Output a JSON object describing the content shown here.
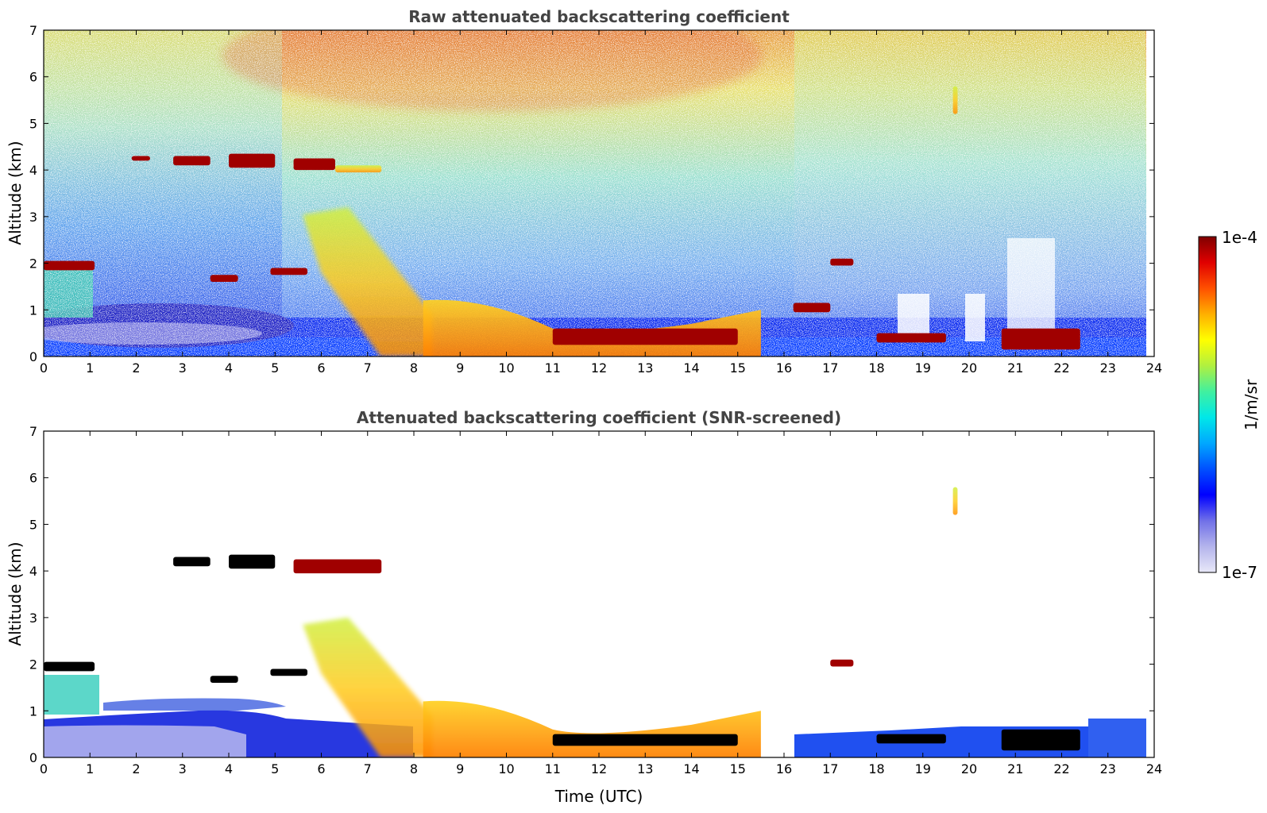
{
  "chart_data": [
    {
      "type": "heatmap",
      "title": "Raw attenuated backscattering coefficient",
      "xlabel": "",
      "ylabel": "Altitude (km)",
      "xlim": [
        0,
        24
      ],
      "ylim": [
        0,
        7
      ],
      "xticks": [
        "0",
        "1",
        "2",
        "3",
        "4",
        "5",
        "6",
        "7",
        "8",
        "9",
        "10",
        "11",
        "12",
        "13",
        "14",
        "15",
        "16",
        "17",
        "18",
        "19",
        "20",
        "21",
        "22",
        "23",
        "24"
      ],
      "yticks": [
        "0",
        "1",
        "2",
        "3",
        "4",
        "5",
        "6",
        "7"
      ],
      "scale": "log",
      "data_end_hour": 23.8,
      "features": [
        {
          "kind": "cloud_layer",
          "x": [
            0.0,
            1.1
          ],
          "y": [
            1.85,
            2.05
          ],
          "level": "high"
        },
        {
          "kind": "cloud_layer",
          "x": [
            1.9,
            2.3
          ],
          "y": [
            4.2,
            4.3
          ],
          "level": "high"
        },
        {
          "kind": "cloud_layer",
          "x": [
            2.8,
            3.6
          ],
          "y": [
            4.1,
            4.3
          ],
          "level": "high"
        },
        {
          "kind": "cloud_layer",
          "x": [
            4.0,
            5.0
          ],
          "y": [
            4.05,
            4.35
          ],
          "level": "high"
        },
        {
          "kind": "cloud_layer",
          "x": [
            5.4,
            6.3
          ],
          "y": [
            4.0,
            4.25
          ],
          "level": "high"
        },
        {
          "kind": "cloud_layer",
          "x": [
            6.3,
            7.3
          ],
          "y": [
            3.95,
            4.1
          ],
          "level": "medium"
        },
        {
          "kind": "cloud_layer",
          "x": [
            3.6,
            4.2
          ],
          "y": [
            1.6,
            1.75
          ],
          "level": "high"
        },
        {
          "kind": "cloud_layer",
          "x": [
            4.9,
            5.7
          ],
          "y": [
            1.75,
            1.9
          ],
          "level": "high"
        },
        {
          "kind": "aerosol_plume",
          "x": [
            5.6,
            8.4
          ],
          "y": [
            0.0,
            3.2
          ],
          "level": "medium"
        },
        {
          "kind": "boundary_layer",
          "x": [
            8.2,
            15.5
          ],
          "y": [
            0.0,
            1.3
          ],
          "level": "medium_high"
        },
        {
          "kind": "cloud_layer",
          "x": [
            11.0,
            15.0
          ],
          "y": [
            0.25,
            0.6
          ],
          "level": "high"
        },
        {
          "kind": "cloud_layer",
          "x": [
            16.2,
            17.0
          ],
          "y": [
            0.95,
            1.15
          ],
          "level": "high"
        },
        {
          "kind": "cloud_layer",
          "x": [
            17.0,
            17.5
          ],
          "y": [
            1.95,
            2.1
          ],
          "level": "high"
        },
        {
          "kind": "cloud_layer",
          "x": [
            18.0,
            19.5
          ],
          "y": [
            0.3,
            0.5
          ],
          "level": "high"
        },
        {
          "kind": "cloud_layer",
          "x": [
            20.7,
            22.4
          ],
          "y": [
            0.15,
            0.6
          ],
          "level": "high"
        },
        {
          "kind": "cloud_layer",
          "x": [
            19.65,
            19.75
          ],
          "y": [
            5.2,
            5.8
          ],
          "level": "medium"
        }
      ]
    },
    {
      "type": "heatmap",
      "title": "Attenuated backscattering coefficient (SNR-screened)",
      "xlabel": "Time (UTC)",
      "ylabel": "Altitude (km)",
      "xlim": [
        0,
        24
      ],
      "ylim": [
        0,
        7
      ],
      "xticks": [
        "0",
        "1",
        "2",
        "3",
        "4",
        "5",
        "6",
        "7",
        "8",
        "9",
        "10",
        "11",
        "12",
        "13",
        "14",
        "15",
        "16",
        "17",
        "18",
        "19",
        "20",
        "21",
        "22",
        "23",
        "24"
      ],
      "yticks": [
        "0",
        "1",
        "2",
        "3",
        "4",
        "5",
        "6",
        "7"
      ],
      "scale": "log",
      "screened": true,
      "data_end_hour": 23.8,
      "features": [
        {
          "kind": "cloud_layer",
          "x": [
            0.0,
            1.1
          ],
          "y": [
            1.85,
            2.05
          ],
          "level": "saturated"
        },
        {
          "kind": "cloud_layer",
          "x": [
            2.8,
            3.6
          ],
          "y": [
            4.1,
            4.3
          ],
          "level": "saturated"
        },
        {
          "kind": "cloud_layer",
          "x": [
            4.0,
            5.0
          ],
          "y": [
            4.05,
            4.35
          ],
          "level": "saturated"
        },
        {
          "kind": "cloud_layer",
          "x": [
            5.4,
            7.3
          ],
          "y": [
            3.95,
            4.25
          ],
          "level": "high"
        },
        {
          "kind": "cloud_layer",
          "x": [
            3.6,
            4.2
          ],
          "y": [
            1.6,
            1.75
          ],
          "level": "saturated"
        },
        {
          "kind": "cloud_layer",
          "x": [
            4.9,
            5.7
          ],
          "y": [
            1.75,
            1.9
          ],
          "level": "saturated"
        },
        {
          "kind": "aerosol_plume",
          "x": [
            5.6,
            8.4
          ],
          "y": [
            0.0,
            3.0
          ],
          "level": "medium"
        },
        {
          "kind": "boundary_layer",
          "x": [
            8.2,
            15.5
          ],
          "y": [
            0.0,
            1.3
          ],
          "level": "medium_high"
        },
        {
          "kind": "cloud_layer",
          "x": [
            11.0,
            15.0
          ],
          "y": [
            0.25,
            0.5
          ],
          "level": "saturated"
        },
        {
          "kind": "cloud_layer",
          "x": [
            17.0,
            17.5
          ],
          "y": [
            1.95,
            2.1
          ],
          "level": "high"
        },
        {
          "kind": "cloud_layer",
          "x": [
            18.0,
            19.5
          ],
          "y": [
            0.3,
            0.5
          ],
          "level": "saturated"
        },
        {
          "kind": "cloud_layer",
          "x": [
            20.7,
            22.4
          ],
          "y": [
            0.15,
            0.6
          ],
          "level": "saturated"
        },
        {
          "kind": "cloud_layer",
          "x": [
            19.65,
            19.75
          ],
          "y": [
            5.2,
            5.8
          ],
          "level": "medium"
        }
      ]
    }
  ],
  "colorbar": {
    "label": "1/m/sr",
    "max_label": "1e-4",
    "min_label": "1e-7",
    "colors": [
      "#e8e8f8",
      "#b4b4ec",
      "#7070e8",
      "#0000ff",
      "#0050ff",
      "#00a8ff",
      "#00e8e8",
      "#40f0a0",
      "#b0f040",
      "#ffff00",
      "#ffb000",
      "#ff5000",
      "#e00000",
      "#800000"
    ]
  }
}
